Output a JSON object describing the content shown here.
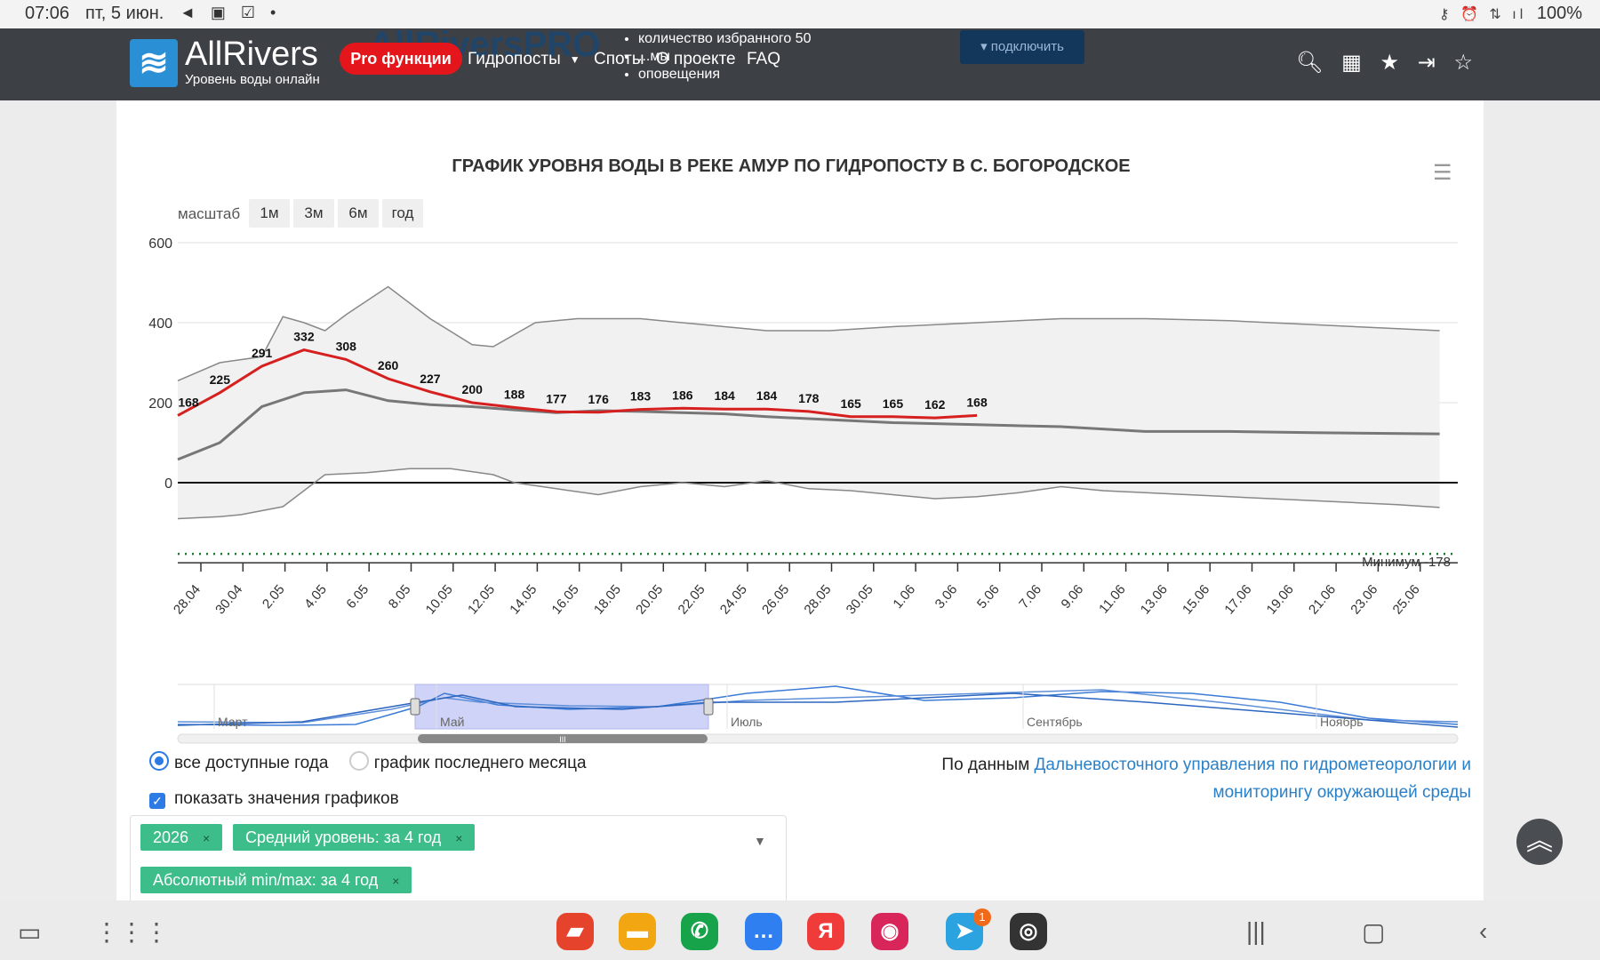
{
  "status_bar": {
    "time": "07:06",
    "date": "пт, 5 июн.",
    "left_icons": "◄ ▣ ☑ •",
    "right_icons": "⚷ ⏰ ⇅ ıl",
    "battery": "100%"
  },
  "nav": {
    "brand": "AllRivers",
    "subtitle": "Уровень воды онлайн",
    "pro_label": "Pro функции",
    "ghost_brand": "AllRiversPRO",
    "items": {
      "hydroposts": "Гидропосты",
      "spots": "Споты",
      "about": "О проекте",
      "faq": "FAQ"
    },
    "promo": [
      "количество избранного 50",
      "...мы",
      "оповещения"
    ],
    "connect_label": "подключить",
    "icons": [
      "search-icon",
      "map-icon",
      "star-icon",
      "login-icon",
      "star-outline-icon"
    ]
  },
  "chart_header": {
    "title": "ГРАФИК УРОВНЯ ВОДЫ В РЕКЕ АМУР ПО ГИДРОПОСТУ В С. БОГОРОДСКОЕ",
    "scale_label": "масштаб",
    "scale_buttons": {
      "m1": "1м",
      "m3": "3м",
      "m6": "6м",
      "year": "год"
    }
  },
  "chart_data": {
    "type": "line",
    "title": "ГРАФИК УРОВНЯ ВОДЫ В РЕКЕ АМУР ПО ГИДРОПОСТУ В С. БОГОРОДСКОЕ",
    "y_ticks": [
      600,
      400,
      200,
      0
    ],
    "ylim": [
      -200,
      600
    ],
    "x_tick_labels": [
      "28.04",
      "30.04",
      "2.05",
      "4.05",
      "6.05",
      "8.05",
      "10.05",
      "12.05",
      "14.05",
      "16.05",
      "18.05",
      "20.05",
      "22.05",
      "24.05",
      "26.05",
      "28.05",
      "30.05",
      "1.06",
      "3.06",
      "5.06",
      "7.06",
      "9.06",
      "11.06",
      "13.06",
      "15.06",
      "17.06",
      "19.06",
      "21.06",
      "23.06",
      "25.06"
    ],
    "min_line_label": "Минимум -178",
    "min_line_value": -178,
    "grid": true,
    "series": [
      {
        "name": "2026",
        "color": "#d62020",
        "labeled_points": [
          {
            "x": "27.04",
            "y": 168
          },
          {
            "x": "28.04",
            "y": 225
          },
          {
            "x": "29.04",
            "y": 291
          },
          {
            "x": "30.04",
            "y": 332
          },
          {
            "x": "1.05",
            "y": 308
          },
          {
            "x": "2.05",
            "y": 260
          },
          {
            "x": "3.05",
            "y": 227
          },
          {
            "x": "4.05",
            "y": 200
          },
          {
            "x": "5.05",
            "y": 188
          },
          {
            "x": "6.05",
            "y": 177
          },
          {
            "x": "7.05",
            "y": 176
          },
          {
            "x": "8.05",
            "y": 183
          },
          {
            "x": "9.05",
            "y": 186
          },
          {
            "x": "10.05",
            "y": 184
          },
          {
            "x": "11.05",
            "y": 184
          },
          {
            "x": "12.05",
            "y": 178
          },
          {
            "x": "13.05",
            "y": 165
          },
          {
            "x": "14.05",
            "y": 165
          },
          {
            "x": "15.05",
            "y": 162
          },
          {
            "x": "16.05",
            "y": 168
          }
        ]
      },
      {
        "name": "Средний уровень: за 4 год",
        "color": "#777777",
        "points": [
          [
            0,
            58
          ],
          [
            2,
            100
          ],
          [
            4,
            190
          ],
          [
            6,
            225
          ],
          [
            8,
            232
          ],
          [
            10,
            205
          ],
          [
            12,
            195
          ],
          [
            14,
            190
          ],
          [
            16,
            182
          ],
          [
            18,
            175
          ],
          [
            20,
            180
          ],
          [
            22,
            178
          ],
          [
            24,
            175
          ],
          [
            26,
            172
          ],
          [
            28,
            165
          ],
          [
            30,
            160
          ],
          [
            32,
            155
          ],
          [
            34,
            150
          ],
          [
            38,
            145
          ],
          [
            42,
            140
          ],
          [
            46,
            128
          ],
          [
            50,
            128
          ],
          [
            54,
            125
          ],
          [
            60,
            122
          ]
        ]
      },
      {
        "name": "Абсолютный max",
        "color": "#888888",
        "points": [
          [
            0,
            255
          ],
          [
            2,
            300
          ],
          [
            4,
            315
          ],
          [
            5,
            415
          ],
          [
            6,
            400
          ],
          [
            7,
            380
          ],
          [
            8,
            420
          ],
          [
            10,
            490
          ],
          [
            12,
            410
          ],
          [
            14,
            345
          ],
          [
            15,
            340
          ],
          [
            17,
            400
          ],
          [
            19,
            410
          ],
          [
            22,
            410
          ],
          [
            25,
            395
          ],
          [
            28,
            380
          ],
          [
            31,
            380
          ],
          [
            34,
            390
          ],
          [
            38,
            400
          ],
          [
            42,
            410
          ],
          [
            46,
            410
          ],
          [
            50,
            405
          ],
          [
            54,
            395
          ],
          [
            58,
            385
          ],
          [
            60,
            380
          ]
        ]
      },
      {
        "name": "Абсолютный min",
        "color": "#888888",
        "points": [
          [
            0,
            -90
          ],
          [
            2,
            -85
          ],
          [
            3,
            -80
          ],
          [
            5,
            -60
          ],
          [
            6,
            -20
          ],
          [
            7,
            20
          ],
          [
            9,
            25
          ],
          [
            11,
            35
          ],
          [
            13,
            35
          ],
          [
            15,
            20
          ],
          [
            16,
            0
          ],
          [
            18,
            -15
          ],
          [
            20,
            -30
          ],
          [
            22,
            -10
          ],
          [
            24,
            0
          ],
          [
            26,
            -10
          ],
          [
            28,
            5
          ],
          [
            30,
            -15
          ],
          [
            32,
            -20
          ],
          [
            34,
            -30
          ],
          [
            36,
            -40
          ],
          [
            38,
            -35
          ],
          [
            40,
            -25
          ],
          [
            42,
            -10
          ],
          [
            44,
            -20
          ],
          [
            46,
            -25
          ],
          [
            50,
            -35
          ],
          [
            54,
            -45
          ],
          [
            58,
            -55
          ],
          [
            60,
            -62
          ]
        ]
      }
    ]
  },
  "navigator": {
    "months": [
      "Март",
      "Май",
      "Июль",
      "Сентябрь",
      "Ноябрь"
    ],
    "handle_grip": "III"
  },
  "controls": {
    "radio_all_years": "все доступные года",
    "radio_last_month": "график последнего месяца",
    "show_values": "показать значения графиков",
    "checkbox_mark": "✓",
    "source_prefix": "По данным ",
    "source_link": "Дальневосточного управления по гидрометеорологии и мониторингу окружающей среды"
  },
  "tags": [
    "2026",
    "Средний уровень: за 4 год",
    "Абсолютный min/max: за 4 год"
  ],
  "tag_remove": "×",
  "dock": {
    "telegram_badge": "1",
    "apps": [
      "Notes",
      "Files",
      "Phone",
      "Messages",
      "Я",
      "Camera",
      "Telegram",
      "Other"
    ]
  }
}
